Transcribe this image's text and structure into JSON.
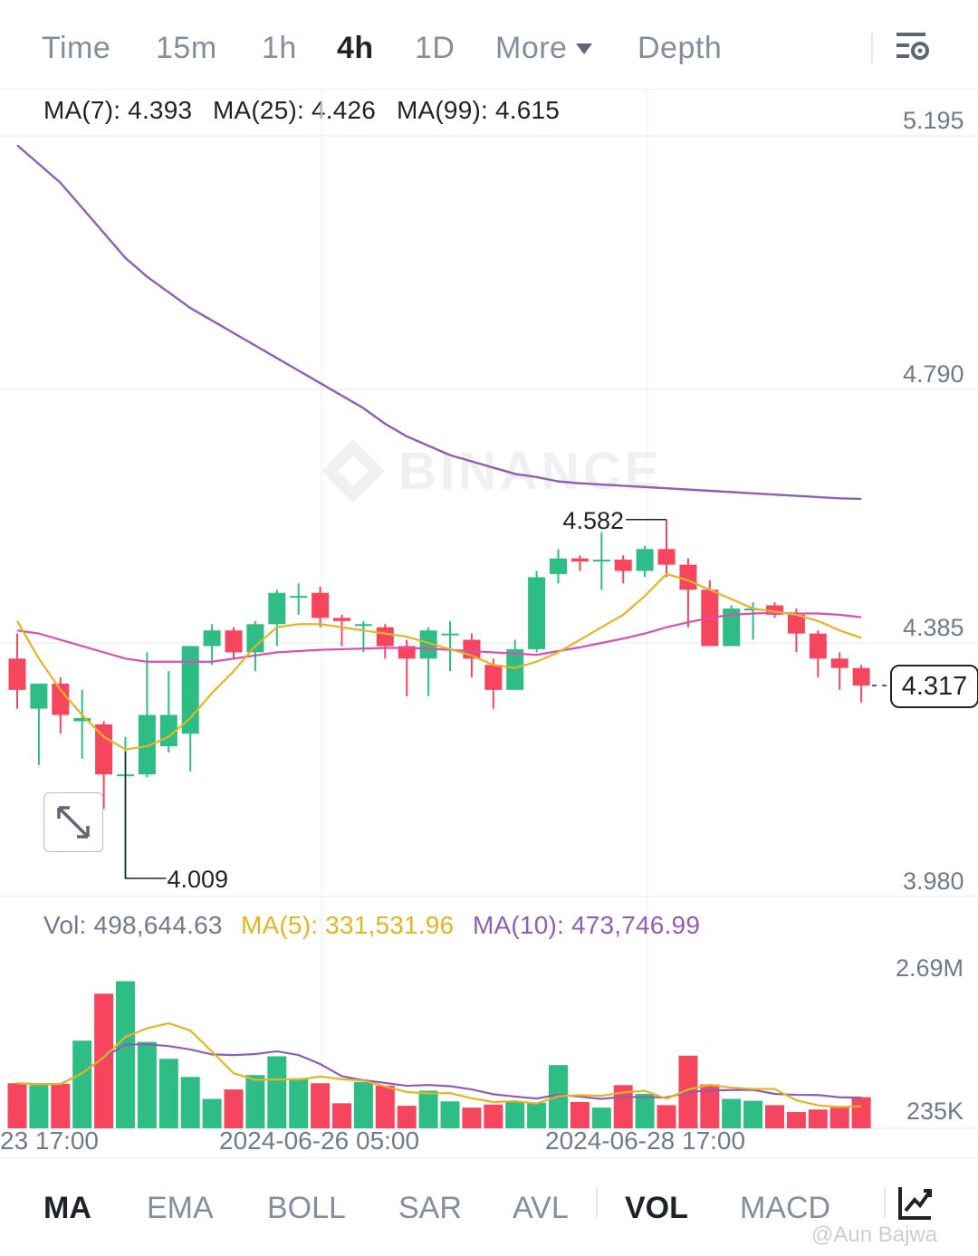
{
  "timeframes": {
    "items": [
      "Time",
      "15m",
      "1h",
      "4h",
      "1D",
      "More",
      "Depth"
    ],
    "active": "4h"
  },
  "ma_legend": {
    "ma7": "MA(7): 4.393",
    "ma25": "MA(25): 4.426",
    "ma99": "MA(99): 4.615"
  },
  "vol_legend": {
    "vol": "Vol: 498,644.63",
    "ma5": "MA(5): 331,531.96",
    "ma10": "MA(10): 473,746.99"
  },
  "price_axis": [
    "5.195",
    "4.790",
    "4.385",
    "3.980"
  ],
  "volume_axis": [
    "2.69M",
    "235K"
  ],
  "current_price": "4.317",
  "high_marker": "4.582",
  "low_marker": "4.009",
  "watermark_logo": "BINANCE",
  "indicators": {
    "items": [
      "MA",
      "EMA",
      "BOLL",
      "SAR",
      "AVL",
      "VOL",
      "MACD"
    ],
    "active": [
      "MA",
      "VOL"
    ]
  },
  "credit": "@Aun Bajwa",
  "colors": {
    "up": "#2ebd85",
    "down": "#f6465d",
    "ma7": "#e6b422",
    "ma25": "#d94fb2",
    "ma99": "#8e5fb5"
  },
  "chart_data": {
    "type": "candlestick",
    "interval": "4h",
    "x_ticks": [
      "23 17:00",
      "2024-06-26 05:00",
      "2024-06-28 17:00"
    ],
    "y_range": [
      3.98,
      5.195
    ],
    "volume_range": [
      0,
      2690000
    ],
    "candles": [
      {
        "o": 4.36,
        "h": 4.4,
        "l": 4.28,
        "c": 4.31
      },
      {
        "o": 4.28,
        "h": 4.32,
        "l": 4.19,
        "c": 4.32
      },
      {
        "o": 4.32,
        "h": 4.33,
        "l": 4.24,
        "c": 4.27
      },
      {
        "o": 4.26,
        "h": 4.31,
        "l": 4.2,
        "c": 4.265
      },
      {
        "o": 4.255,
        "h": 4.26,
        "l": 4.12,
        "c": 4.175
      },
      {
        "o": 4.175,
        "h": 4.235,
        "l": 4.009,
        "c": 4.175
      },
      {
        "o": 4.175,
        "h": 4.37,
        "l": 4.17,
        "c": 4.27
      },
      {
        "o": 4.22,
        "h": 4.34,
        "l": 4.21,
        "c": 4.27
      },
      {
        "o": 4.24,
        "h": 4.38,
        "l": 4.18,
        "c": 4.38
      },
      {
        "o": 4.38,
        "h": 4.415,
        "l": 4.35,
        "c": 4.405
      },
      {
        "o": 4.405,
        "h": 4.41,
        "l": 4.36,
        "c": 4.37
      },
      {
        "o": 4.37,
        "h": 4.42,
        "l": 4.34,
        "c": 4.415
      },
      {
        "o": 4.415,
        "h": 4.47,
        "l": 4.38,
        "c": 4.465
      },
      {
        "o": 4.46,
        "h": 4.48,
        "l": 4.43,
        "c": 4.46
      },
      {
        "o": 4.465,
        "h": 4.475,
        "l": 4.41,
        "c": 4.425
      },
      {
        "o": 4.425,
        "h": 4.43,
        "l": 4.38,
        "c": 4.42
      },
      {
        "o": 4.415,
        "h": 4.42,
        "l": 4.37,
        "c": 4.415
      },
      {
        "o": 4.41,
        "h": 4.415,
        "l": 4.36,
        "c": 4.38
      },
      {
        "o": 4.38,
        "h": 4.39,
        "l": 4.3,
        "c": 4.36
      },
      {
        "o": 4.36,
        "h": 4.41,
        "l": 4.3,
        "c": 4.405
      },
      {
        "o": 4.4,
        "h": 4.42,
        "l": 4.34,
        "c": 4.4
      },
      {
        "o": 4.39,
        "h": 4.4,
        "l": 4.33,
        "c": 4.36
      },
      {
        "o": 4.35,
        "h": 4.36,
        "l": 4.28,
        "c": 4.31
      },
      {
        "o": 4.31,
        "h": 4.39,
        "l": 4.31,
        "c": 4.375
      },
      {
        "o": 4.375,
        "h": 4.5,
        "l": 4.37,
        "c": 4.49
      },
      {
        "o": 4.495,
        "h": 4.535,
        "l": 4.48,
        "c": 4.52
      },
      {
        "o": 4.52,
        "h": 4.525,
        "l": 4.5,
        "c": 4.515
      },
      {
        "o": 4.515,
        "h": 4.562,
        "l": 4.47,
        "c": 4.518
      },
      {
        "o": 4.518,
        "h": 4.525,
        "l": 4.48,
        "c": 4.5
      },
      {
        "o": 4.5,
        "h": 4.54,
        "l": 4.49,
        "c": 4.535
      },
      {
        "o": 4.535,
        "h": 4.582,
        "l": 4.49,
        "c": 4.51
      },
      {
        "o": 4.51,
        "h": 4.52,
        "l": 4.41,
        "c": 4.47
      },
      {
        "o": 4.47,
        "h": 4.485,
        "l": 4.38,
        "c": 4.38
      },
      {
        "o": 4.38,
        "h": 4.445,
        "l": 4.38,
        "c": 4.44
      },
      {
        "o": 4.44,
        "h": 4.45,
        "l": 4.39,
        "c": 4.44
      },
      {
        "o": 4.445,
        "h": 4.45,
        "l": 4.425,
        "c": 4.43
      },
      {
        "o": 4.43,
        "h": 4.44,
        "l": 4.37,
        "c": 4.4
      },
      {
        "o": 4.4,
        "h": 4.405,
        "l": 4.33,
        "c": 4.36
      },
      {
        "o": 4.36,
        "h": 4.37,
        "l": 4.31,
        "c": 4.345
      },
      {
        "o": 4.345,
        "h": 4.35,
        "l": 4.29,
        "c": 4.317
      }
    ],
    "ma7": [
      4.42,
      4.36,
      4.31,
      4.27,
      4.235,
      4.215,
      4.22,
      4.235,
      4.265,
      4.305,
      4.34,
      4.38,
      4.41,
      4.415,
      4.415,
      4.41,
      4.405,
      4.4,
      4.395,
      4.385,
      4.375,
      4.365,
      4.35,
      4.345,
      4.355,
      4.37,
      4.39,
      4.41,
      4.43,
      4.46,
      4.495,
      4.485,
      4.47,
      4.455,
      4.44,
      4.435,
      4.43,
      4.42,
      4.405,
      4.393
    ],
    "ma25": [
      4.405,
      4.4,
      4.39,
      4.38,
      4.37,
      4.36,
      4.355,
      4.355,
      4.355,
      4.355,
      4.36,
      4.365,
      4.37,
      4.372,
      4.374,
      4.375,
      4.376,
      4.377,
      4.377,
      4.376,
      4.374,
      4.372,
      4.37,
      4.368,
      4.366,
      4.372,
      4.378,
      4.385,
      4.392,
      4.4,
      4.41,
      4.418,
      4.425,
      4.43,
      4.432,
      4.433,
      4.432,
      4.432,
      4.43,
      4.426
    ],
    "ma99": [
      5.18,
      5.15,
      5.12,
      5.08,
      5.04,
      5.0,
      4.97,
      4.945,
      4.92,
      4.9,
      4.88,
      4.86,
      4.84,
      4.82,
      4.8,
      4.78,
      4.76,
      4.735,
      4.715,
      4.7,
      4.685,
      4.675,
      4.665,
      4.655,
      4.65,
      4.643,
      4.64,
      4.638,
      4.636,
      4.634,
      4.632,
      4.63,
      4.628,
      4.626,
      4.624,
      4.622,
      4.62,
      4.618,
      4.616,
      4.615
    ],
    "volume": [
      720000,
      690000,
      710000,
      1400000,
      2150000,
      2350000,
      1380000,
      1110000,
      820000,
      470000,
      620000,
      850000,
      1150000,
      800000,
      720000,
      400000,
      740000,
      680000,
      360000,
      600000,
      430000,
      330000,
      380000,
      430000,
      410000,
      1010000,
      420000,
      330000,
      690000,
      550000,
      370000,
      1160000,
      700000,
      470000,
      440000,
      370000,
      260000,
      300000,
      330000,
      498644
    ]
  }
}
